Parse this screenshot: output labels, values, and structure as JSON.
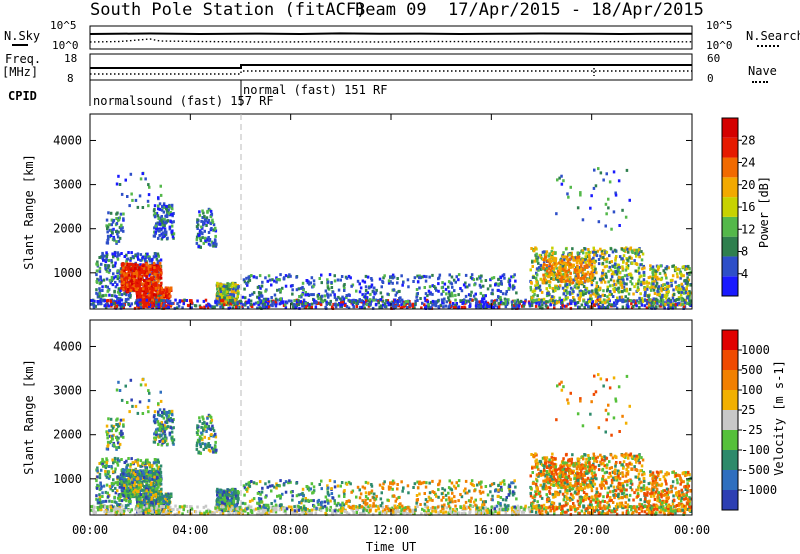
{
  "header": {
    "title": "South Pole Station (fitACF)",
    "beam": "Beam 09",
    "dates": "17/Apr/2015 - 18/Apr/2015"
  },
  "top_panels": {
    "nsky_label": "N.Sky",
    "nsearch_label": "N.Search",
    "noise_ticks_left": [
      "10^5",
      "10^0"
    ],
    "noise_ticks_right": [
      "10^5",
      "10^0"
    ],
    "freq_label_1": "Freq.",
    "freq_label_2": "[MHz]",
    "freq_ticks": [
      "18",
      "8"
    ],
    "nave_label": "Nave",
    "nave_ticks": [
      "60",
      "0"
    ],
    "cpid_label": "CPID",
    "cpid_1": "normalsound (fast) 157 RF",
    "cpid_2": "normal (fast) 151 RF"
  },
  "chart_data": [
    {
      "type": "heatmap",
      "ylabel": "Slant Range [km]",
      "xlabel": "",
      "x_ticks": [
        "00:00",
        "04:00",
        "08:00",
        "12:00",
        "16:00",
        "20:00",
        "00:00"
      ],
      "y_ticks": [
        "1000",
        "2000",
        "3000",
        "4000"
      ],
      "ylim": [
        180,
        4600
      ],
      "xlim_hours": [
        0,
        24
      ],
      "colorbar": {
        "label": "Power [dB]",
        "ticks": [
          "4",
          "8",
          "12",
          "16",
          "20",
          "24",
          "28"
        ],
        "range": [
          0,
          30
        ],
        "colors": [
          "#1a1aff",
          "#2e4fc8",
          "#2f7f4e",
          "#54b84a",
          "#c7d200",
          "#f2a900",
          "#f16a00",
          "#e61a00",
          "#d40000"
        ]
      }
    },
    {
      "type": "heatmap",
      "ylabel": "Slant Range [km]",
      "xlabel": "Time UT",
      "x_ticks": [
        "00:00",
        "04:00",
        "08:00",
        "12:00",
        "16:00",
        "20:00",
        "00:00"
      ],
      "y_ticks": [
        "1000",
        "2000",
        "3000",
        "4000"
      ],
      "ylim": [
        180,
        4600
      ],
      "xlim_hours": [
        0,
        24
      ],
      "colorbar": {
        "label": "Velocity [m s-1]",
        "ticks": [
          "1000",
          "500",
          "100",
          "25",
          "-25",
          "-100",
          "-500",
          "-1000"
        ],
        "range": [
          -1200,
          1200
        ],
        "colors": [
          "#2d3fb3",
          "#2f6fbf",
          "#2d8a6b",
          "#55c03a",
          "#c8c8c8",
          "#f2b000",
          "#f28000",
          "#ef4a00",
          "#e00000"
        ]
      }
    }
  ]
}
